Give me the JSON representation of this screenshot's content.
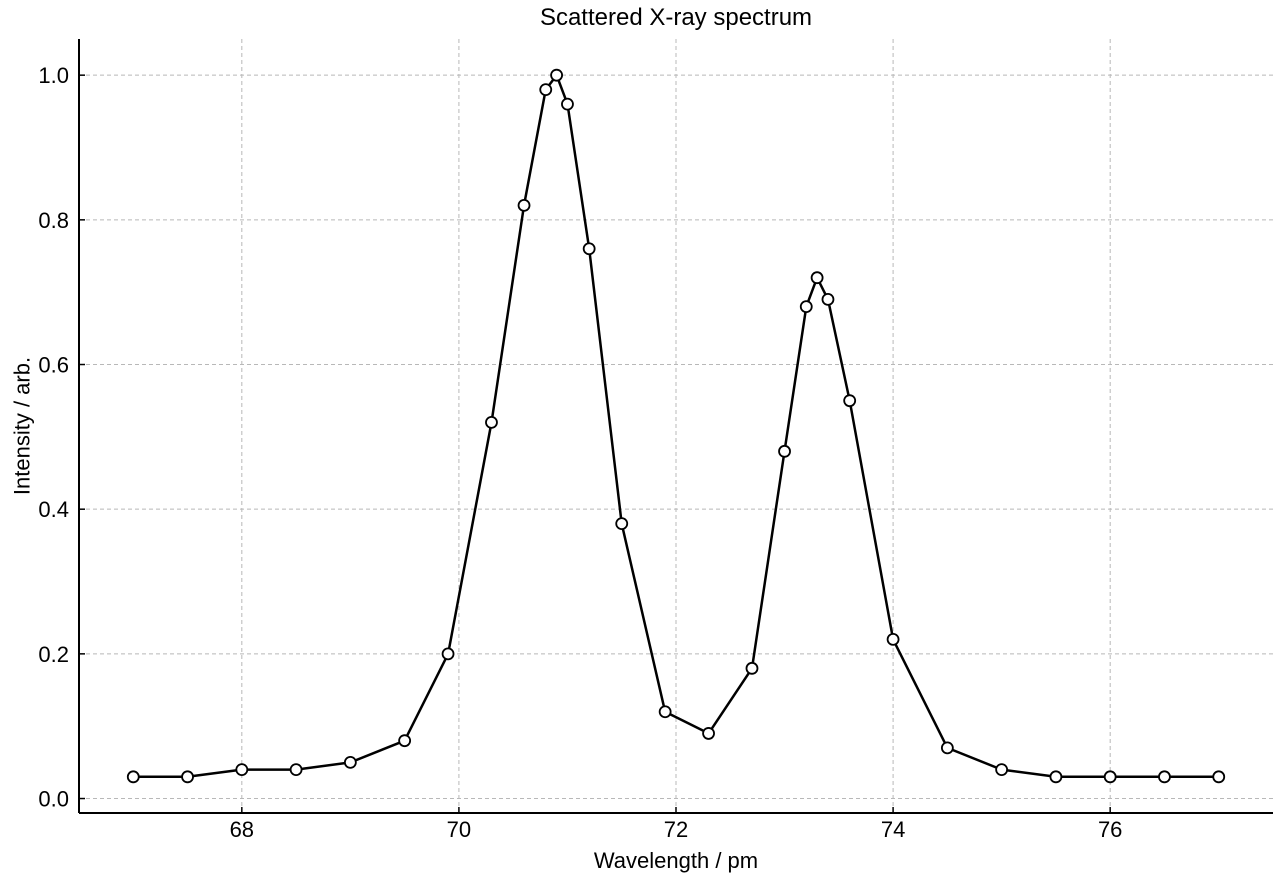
{
  "chart_data": {
    "type": "line",
    "title": "Scattered X-ray spectrum",
    "xlabel": "Wavelength / pm",
    "ylabel": "Intensity / arb.",
    "xlim": [
      66.5,
      77.5
    ],
    "ylim": [
      -0.02,
      1.05
    ],
    "xticks": [
      68,
      70,
      72,
      74,
      76
    ],
    "xtick_labels": [
      "68",
      "70",
      "72",
      "74",
      "76"
    ],
    "yticks": [
      0.0,
      0.2,
      0.4,
      0.6,
      0.8,
      1.0
    ],
    "ytick_labels": [
      "0.0",
      "0.2",
      "0.4",
      "0.6",
      "0.8",
      "1.0"
    ],
    "grid": true,
    "line_color": "#000000",
    "marker_fill": "#ffffff",
    "series": [
      {
        "x": [
          67.0,
          67.5,
          68.0,
          68.5,
          69.0,
          69.5,
          69.9,
          70.3,
          70.6,
          70.8,
          70.9,
          71.0,
          71.2,
          71.5,
          71.9,
          72.3,
          72.7,
          73.0,
          73.2,
          73.3,
          73.4,
          73.6,
          74.0,
          74.5,
          75.0,
          75.5,
          76.0,
          76.5,
          77.0
        ],
        "values": [
          0.03,
          0.03,
          0.04,
          0.04,
          0.05,
          0.08,
          0.2,
          0.52,
          0.82,
          0.98,
          1.0,
          0.96,
          0.76,
          0.38,
          0.12,
          0.09,
          0.18,
          0.48,
          0.68,
          0.72,
          0.69,
          0.55,
          0.22,
          0.07,
          0.04,
          0.03,
          0.03,
          0.03,
          0.03
        ]
      }
    ]
  }
}
